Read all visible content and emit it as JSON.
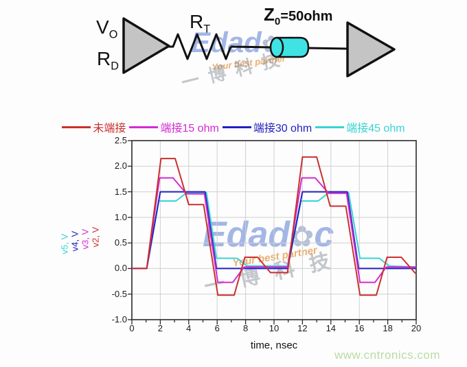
{
  "circuit": {
    "driver_top": "V",
    "driver_top_sub": "O",
    "driver_bottom": "R",
    "driver_bottom_sub": "D",
    "series_resistor": "R",
    "series_resistor_sub": "T",
    "tline": "Z",
    "tline_sub": "0",
    "tline_value": "=50ohm"
  },
  "watermark": {
    "brand_left": "Edad",
    "flower": "✿",
    "brand_right": "c",
    "tagline": "Your best partner",
    "cn": "一博科技"
  },
  "legend": [
    {
      "label": "未端接",
      "color": "#c9302f"
    },
    {
      "label": "端接15 ohm",
      "color": "#d42ad4"
    },
    {
      "label": "端接30 ohm",
      "color": "#2121c0"
    },
    {
      "label": "端接45 ohm",
      "color": "#38d3d3"
    }
  ],
  "axis_series_labels": [
    {
      "label": "v5, V",
      "color": "#38d3d3"
    },
    {
      "label": "v4, V",
      "color": "#2121c0"
    },
    {
      "label": "v3, V",
      "color": "#d42ad4"
    },
    {
      "label": "v2, V",
      "color": "#c9302f"
    }
  ],
  "footer": {
    "url": "www.cntronics.com"
  },
  "chart_data": {
    "type": "line",
    "title": "",
    "xlabel": "time, nsec",
    "ylabel": "v5, V / v4, V / v3, V / v2, V",
    "xlim": [
      0,
      20
    ],
    "ylim": [
      -1.0,
      2.5
    ],
    "xticks": [
      0,
      2,
      4,
      6,
      8,
      10,
      12,
      14,
      16,
      18,
      20
    ],
    "x_minor_step": 1,
    "yticks": [
      -1.0,
      -0.5,
      0.0,
      0.5,
      1.0,
      1.5,
      2.0,
      2.5
    ],
    "grid": true,
    "legend_position": "top",
    "series": [
      {
        "name": "未端接",
        "node": "v2",
        "color": "#c9302f",
        "points": [
          [
            0,
            0
          ],
          [
            1.05,
            0
          ],
          [
            2.05,
            2.15
          ],
          [
            3.05,
            2.15
          ],
          [
            4.0,
            1.25
          ],
          [
            5.05,
            1.25
          ],
          [
            6.05,
            -0.52
          ],
          [
            7.2,
            -0.52
          ],
          [
            7.95,
            0.22
          ],
          [
            8.85,
            0.22
          ],
          [
            9.75,
            -0.08
          ],
          [
            10.95,
            -0.08
          ],
          [
            12.0,
            2.18
          ],
          [
            13.0,
            2.18
          ],
          [
            13.95,
            1.22
          ],
          [
            15.05,
            1.22
          ],
          [
            16.05,
            -0.52
          ],
          [
            17.2,
            -0.52
          ],
          [
            17.95,
            0.22
          ],
          [
            18.95,
            0.22
          ],
          [
            19.9,
            -0.08
          ],
          [
            20,
            -0.1
          ]
        ]
      },
      {
        "name": "端接15 ohm",
        "node": "v3",
        "color": "#d42ad4",
        "points": [
          [
            0,
            0
          ],
          [
            1.05,
            0
          ],
          [
            1.95,
            1.77
          ],
          [
            2.9,
            1.77
          ],
          [
            3.85,
            1.46
          ],
          [
            5.1,
            1.46
          ],
          [
            6.05,
            -0.27
          ],
          [
            7.1,
            -0.27
          ],
          [
            7.9,
            0.03
          ],
          [
            10.95,
            0.03
          ],
          [
            11.95,
            1.77
          ],
          [
            12.9,
            1.77
          ],
          [
            13.85,
            1.47
          ],
          [
            15.1,
            1.47
          ],
          [
            16.05,
            -0.27
          ],
          [
            17.1,
            -0.27
          ],
          [
            17.9,
            0.03
          ],
          [
            20,
            0.03
          ]
        ]
      },
      {
        "name": "端接30 ohm",
        "node": "v4",
        "color": "#2121c0",
        "points": [
          [
            0,
            0
          ],
          [
            1.05,
            0
          ],
          [
            2.0,
            1.5
          ],
          [
            5.15,
            1.5
          ],
          [
            5.95,
            0.0
          ],
          [
            10.95,
            0.0
          ],
          [
            12.0,
            1.5
          ],
          [
            15.15,
            1.5
          ],
          [
            15.95,
            0.0
          ],
          [
            20,
            0.0
          ]
        ]
      },
      {
        "name": "端接45 ohm",
        "node": "v5",
        "color": "#38d3d3",
        "points": [
          [
            0,
            0
          ],
          [
            1.05,
            0
          ],
          [
            1.9,
            1.32
          ],
          [
            3.1,
            1.32
          ],
          [
            3.85,
            1.48
          ],
          [
            5.25,
            1.48
          ],
          [
            5.95,
            0.2
          ],
          [
            7.4,
            0.2
          ],
          [
            8.1,
            0.05
          ],
          [
            11.0,
            0.05
          ],
          [
            11.9,
            1.32
          ],
          [
            13.1,
            1.32
          ],
          [
            13.85,
            1.48
          ],
          [
            15.25,
            1.48
          ],
          [
            16.05,
            0.2
          ],
          [
            17.4,
            0.2
          ],
          [
            18.1,
            0.05
          ],
          [
            20,
            0.03
          ]
        ]
      }
    ]
  }
}
